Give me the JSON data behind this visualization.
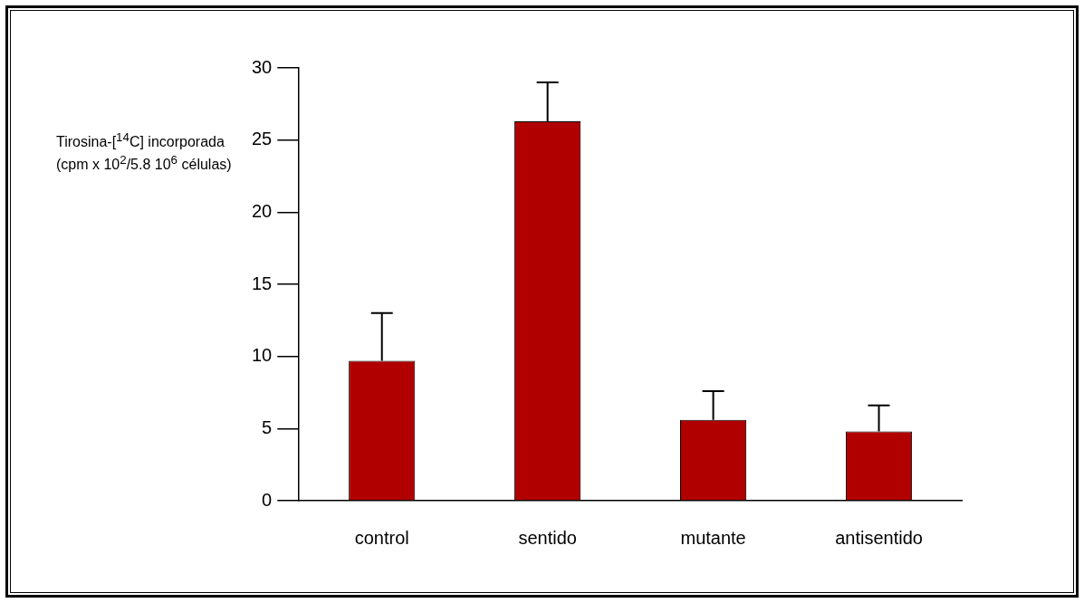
{
  "chart_data": {
    "type": "bar",
    "ylabel": "Tirosina-[$^{14}$C] incorporada (cpm x 10$^{2}$/5.8 10$^{6}$ células)",
    "categories": [
      "control",
      "sentido",
      "mutante",
      "antisentido"
    ],
    "values": [
      9.7,
      26.3,
      5.6,
      4.8
    ],
    "errors": [
      [
        9.7,
        13
      ],
      [
        26.3,
        29
      ],
      [
        5.6,
        7.6
      ],
      [
        4.8,
        6.6
      ]
    ],
    "color": "#b00000",
    "ylim": [
      0,
      30
    ],
    "yticks": [
      0,
      5,
      10,
      15,
      20,
      25,
      30
    ],
    "grid": false,
    "legend": false
  }
}
